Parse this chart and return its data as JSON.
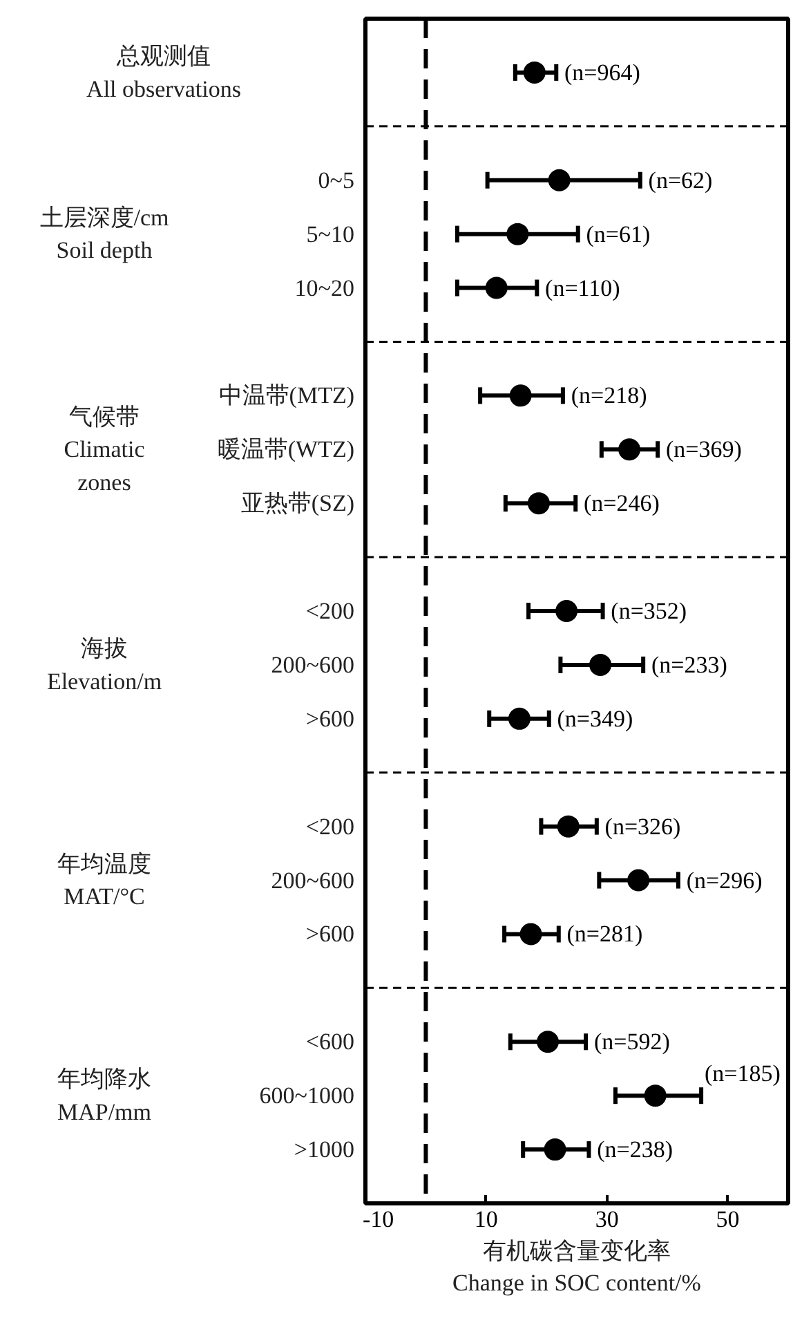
{
  "chart_data": {
    "type": "scatter",
    "xlabel": "有机碳含量变化率\nChange in SOC content/%",
    "categories": [
      null,
      null,
      "0~5",
      "5~10",
      "10~20",
      null,
      "中温带(MTZ)",
      "暖温带(WTZ)",
      "亚热带(SZ)",
      null,
      "<200",
      "200~600",
      ">600",
      null,
      "<200",
      "200~600",
      ">600",
      null,
      "<600",
      "600~1000",
      ">1000"
    ],
    "orientation": "horizontal",
    "series": [
      {
        "color": "#000000",
        "values": [
          18.0,
          null,
          22.1,
          15.2,
          11.7,
          null,
          15.7,
          33.7,
          18.7,
          null,
          23.3,
          28.9,
          15.5,
          null,
          23.6,
          35.2,
          17.4,
          null,
          20.2,
          38.0,
          21.4
        ],
        "errors": [
          [
            14.8,
            21.6
          ],
          null,
          [
            10.2,
            35.5
          ],
          [
            5.2,
            25.2
          ],
          [
            5.2,
            18.4
          ],
          null,
          [
            9.0,
            22.7
          ],
          [
            29.1,
            38.4
          ],
          [
            13.2,
            24.8
          ],
          null,
          [
            17.0,
            29.3
          ],
          [
            22.3,
            36.0
          ],
          [
            10.5,
            20.4
          ],
          null,
          [
            19.1,
            28.3
          ],
          [
            28.7,
            41.8
          ],
          [
            13.0,
            22.0
          ],
          null,
          [
            14.0,
            26.5
          ],
          [
            31.4,
            45.6
          ],
          [
            16.1,
            27.0
          ]
        ]
      }
    ],
    "annotations": [
      "总观测值\nAll observations",
      "土层深度/cm\nSoil depth",
      "气候带\nClimatic\nzones",
      "海拔\nElevation/m",
      "年均温度\nMAT/°C",
      "年均降水\nMAP/mm",
      "(n=964)",
      "(n=62)",
      "(n=61)",
      "(n=110)",
      "(n=218)",
      "(n=369)",
      "(n=246)",
      "(n=352)",
      "(n=233)",
      "(n=349)",
      "(n=326)",
      "(n=296)",
      "(n=281)",
      "(n=592)",
      "(n=185)",
      "(n=238)"
    ],
    "xlim": [
      -10,
      60
    ],
    "xticks": [
      -10,
      10,
      30,
      50
    ],
    "marker": "circle",
    "ref_lines": [
      {
        "axis": "x",
        "value": 0,
        "line_style": "dashed"
      }
    ]
  }
}
